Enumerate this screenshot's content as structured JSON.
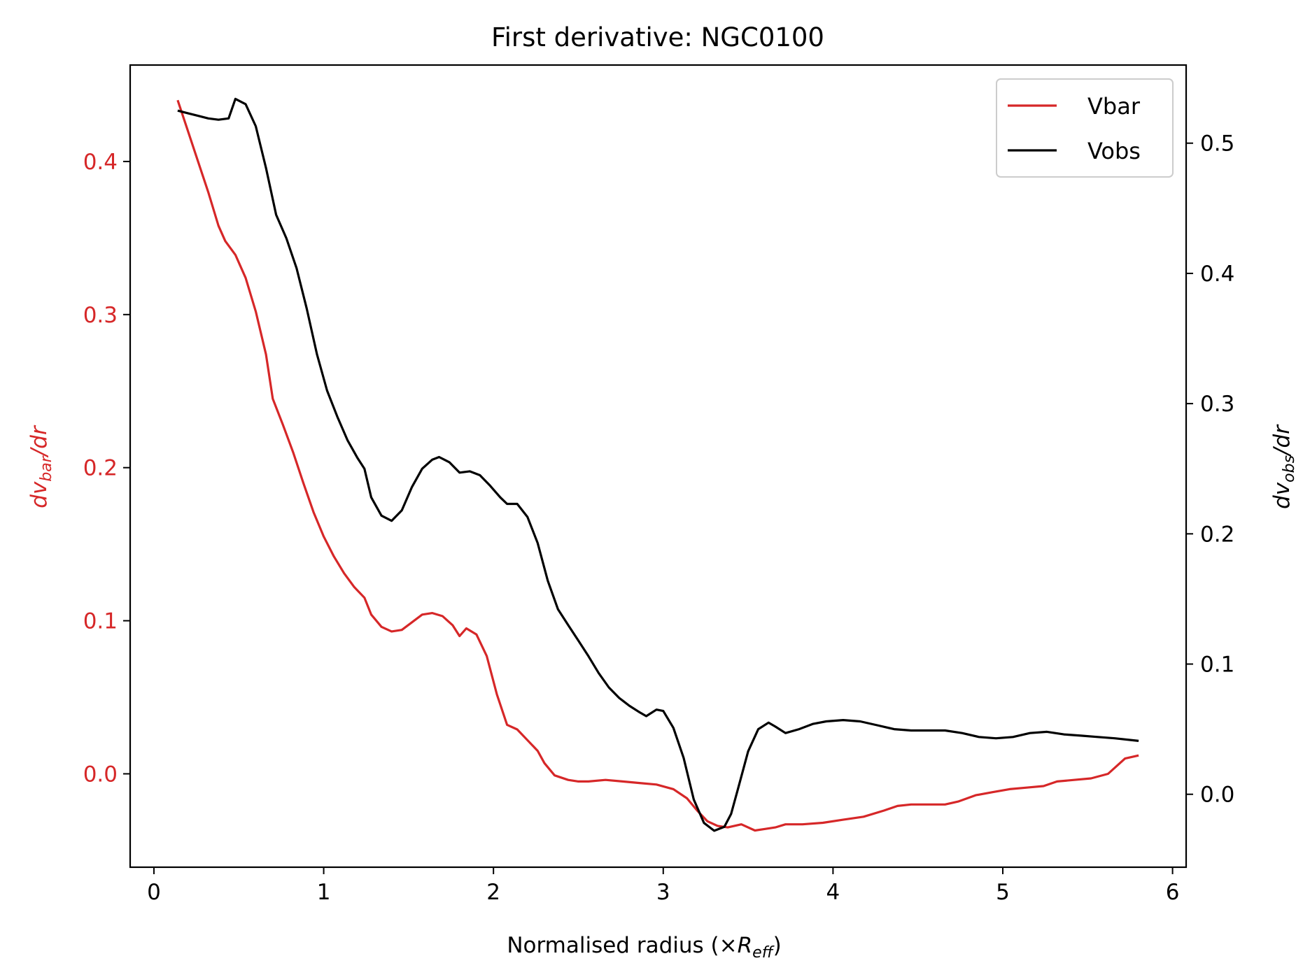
{
  "chart_data": {
    "type": "line",
    "title": "First derivative: NGC0100",
    "xlabel": {
      "base": "Normalised radius (×",
      "var": "R",
      "sub": "eff",
      "tail": ")"
    },
    "ylabel_left": {
      "d": "dv",
      "sub": "bar",
      "tail": "/dr"
    },
    "ylabel_right": {
      "d": "dv",
      "sub": "obs",
      "tail": "/dr"
    },
    "xlim": [
      -0.14,
      6.08
    ],
    "ylim_left": [
      -0.061,
      0.463
    ],
    "ylim_right": [
      -0.056,
      0.56
    ],
    "x_ticks": [
      0,
      1,
      2,
      3,
      4,
      5,
      6
    ],
    "x_tick_labels": [
      "0",
      "1",
      "2",
      "3",
      "4",
      "5",
      "6"
    ],
    "y_left_ticks": [
      0.0,
      0.1,
      0.2,
      0.3,
      0.4
    ],
    "y_left_tick_labels": [
      "0.0",
      "0.1",
      "0.2",
      "0.3",
      "0.4"
    ],
    "y_right_ticks": [
      0.0,
      0.1,
      0.2,
      0.3,
      0.4,
      0.5
    ],
    "y_right_tick_labels": [
      "0.0",
      "0.1",
      "0.2",
      "0.3",
      "0.4",
      "0.5"
    ],
    "legend": {
      "position": "upper right"
    },
    "colors": {
      "vbar": "#d62728",
      "vobs": "#000000",
      "left_axis": "#d62728"
    },
    "grid": false,
    "series": [
      {
        "name": "Vbar",
        "axis": "left",
        "color": "#d62728",
        "points": [
          [
            0.14,
            0.44
          ],
          [
            0.2,
            0.42
          ],
          [
            0.26,
            0.4
          ],
          [
            0.32,
            0.38
          ],
          [
            0.38,
            0.358
          ],
          [
            0.42,
            0.348
          ],
          [
            0.48,
            0.339
          ],
          [
            0.54,
            0.324
          ],
          [
            0.6,
            0.302
          ],
          [
            0.66,
            0.274
          ],
          [
            0.7,
            0.245
          ],
          [
            0.76,
            0.228
          ],
          [
            0.82,
            0.21
          ],
          [
            0.88,
            0.19
          ],
          [
            0.94,
            0.171
          ],
          [
            1.0,
            0.155
          ],
          [
            1.06,
            0.142
          ],
          [
            1.12,
            0.131
          ],
          [
            1.18,
            0.122
          ],
          [
            1.24,
            0.115
          ],
          [
            1.28,
            0.104
          ],
          [
            1.34,
            0.096
          ],
          [
            1.4,
            0.093
          ],
          [
            1.46,
            0.094
          ],
          [
            1.52,
            0.099
          ],
          [
            1.58,
            0.104
          ],
          [
            1.64,
            0.105
          ],
          [
            1.7,
            0.103
          ],
          [
            1.76,
            0.097
          ],
          [
            1.8,
            0.09
          ],
          [
            1.84,
            0.095
          ],
          [
            1.9,
            0.091
          ],
          [
            1.96,
            0.077
          ],
          [
            2.02,
            0.052
          ],
          [
            2.08,
            0.032
          ],
          [
            2.14,
            0.029
          ],
          [
            2.2,
            0.022
          ],
          [
            2.26,
            0.015
          ],
          [
            2.3,
            0.007
          ],
          [
            2.36,
            -0.001
          ],
          [
            2.44,
            -0.004
          ],
          [
            2.5,
            -0.005
          ],
          [
            2.56,
            -0.005
          ],
          [
            2.66,
            -0.004
          ],
          [
            2.76,
            -0.005
          ],
          [
            2.86,
            -0.006
          ],
          [
            2.96,
            -0.007
          ],
          [
            3.06,
            -0.01
          ],
          [
            3.14,
            -0.016
          ],
          [
            3.2,
            -0.024
          ],
          [
            3.26,
            -0.031
          ],
          [
            3.32,
            -0.034
          ],
          [
            3.38,
            -0.035
          ],
          [
            3.46,
            -0.033
          ],
          [
            3.54,
            -0.037
          ],
          [
            3.6,
            -0.036
          ],
          [
            3.66,
            -0.035
          ],
          [
            3.72,
            -0.033
          ],
          [
            3.82,
            -0.033
          ],
          [
            3.94,
            -0.032
          ],
          [
            4.06,
            -0.03
          ],
          [
            4.18,
            -0.028
          ],
          [
            4.3,
            -0.024
          ],
          [
            4.38,
            -0.021
          ],
          [
            4.46,
            -0.02
          ],
          [
            4.56,
            -0.02
          ],
          [
            4.66,
            -0.02
          ],
          [
            4.74,
            -0.018
          ],
          [
            4.84,
            -0.014
          ],
          [
            4.94,
            -0.012
          ],
          [
            5.04,
            -0.01
          ],
          [
            5.14,
            -0.009
          ],
          [
            5.24,
            -0.008
          ],
          [
            5.32,
            -0.005
          ],
          [
            5.42,
            -0.004
          ],
          [
            5.52,
            -0.003
          ],
          [
            5.62,
            0.0
          ],
          [
            5.68,
            0.006
          ],
          [
            5.72,
            0.01
          ],
          [
            5.8,
            0.012
          ]
        ]
      },
      {
        "name": "Vobs",
        "axis": "right",
        "color": "#000000",
        "points": [
          [
            0.14,
            0.525
          ],
          [
            0.2,
            0.523
          ],
          [
            0.26,
            0.521
          ],
          [
            0.32,
            0.519
          ],
          [
            0.38,
            0.518
          ],
          [
            0.44,
            0.519
          ],
          [
            0.48,
            0.534
          ],
          [
            0.54,
            0.53
          ],
          [
            0.6,
            0.513
          ],
          [
            0.66,
            0.481
          ],
          [
            0.72,
            0.445
          ],
          [
            0.78,
            0.427
          ],
          [
            0.84,
            0.404
          ],
          [
            0.9,
            0.373
          ],
          [
            0.96,
            0.338
          ],
          [
            1.02,
            0.31
          ],
          [
            1.08,
            0.29
          ],
          [
            1.14,
            0.272
          ],
          [
            1.2,
            0.258
          ],
          [
            1.24,
            0.25
          ],
          [
            1.28,
            0.228
          ],
          [
            1.34,
            0.214
          ],
          [
            1.4,
            0.21
          ],
          [
            1.46,
            0.218
          ],
          [
            1.52,
            0.236
          ],
          [
            1.58,
            0.25
          ],
          [
            1.64,
            0.257
          ],
          [
            1.68,
            0.259
          ],
          [
            1.74,
            0.255
          ],
          [
            1.8,
            0.247
          ],
          [
            1.86,
            0.248
          ],
          [
            1.92,
            0.245
          ],
          [
            1.98,
            0.237
          ],
          [
            2.04,
            0.228
          ],
          [
            2.08,
            0.223
          ],
          [
            2.14,
            0.223
          ],
          [
            2.2,
            0.213
          ],
          [
            2.26,
            0.193
          ],
          [
            2.32,
            0.164
          ],
          [
            2.38,
            0.142
          ],
          [
            2.44,
            0.13
          ],
          [
            2.5,
            0.118
          ],
          [
            2.56,
            0.106
          ],
          [
            2.62,
            0.093
          ],
          [
            2.68,
            0.082
          ],
          [
            2.74,
            0.074
          ],
          [
            2.8,
            0.068
          ],
          [
            2.86,
            0.063
          ],
          [
            2.9,
            0.06
          ],
          [
            2.96,
            0.065
          ],
          [
            3.0,
            0.064
          ],
          [
            3.06,
            0.051
          ],
          [
            3.12,
            0.028
          ],
          [
            3.18,
            -0.004
          ],
          [
            3.24,
            -0.022
          ],
          [
            3.3,
            -0.028
          ],
          [
            3.36,
            -0.025
          ],
          [
            3.4,
            -0.015
          ],
          [
            3.44,
            0.004
          ],
          [
            3.5,
            0.033
          ],
          [
            3.56,
            0.05
          ],
          [
            3.62,
            0.055
          ],
          [
            3.66,
            0.052
          ],
          [
            3.72,
            0.047
          ],
          [
            3.8,
            0.05
          ],
          [
            3.88,
            0.054
          ],
          [
            3.96,
            0.056
          ],
          [
            4.06,
            0.057
          ],
          [
            4.16,
            0.056
          ],
          [
            4.26,
            0.053
          ],
          [
            4.36,
            0.05
          ],
          [
            4.46,
            0.049
          ],
          [
            4.56,
            0.049
          ],
          [
            4.66,
            0.049
          ],
          [
            4.76,
            0.047
          ],
          [
            4.86,
            0.044
          ],
          [
            4.96,
            0.043
          ],
          [
            5.06,
            0.044
          ],
          [
            5.16,
            0.047
          ],
          [
            5.26,
            0.048
          ],
          [
            5.36,
            0.046
          ],
          [
            5.46,
            0.045
          ],
          [
            5.56,
            0.044
          ],
          [
            5.66,
            0.043
          ],
          [
            5.8,
            0.041
          ]
        ]
      }
    ]
  }
}
